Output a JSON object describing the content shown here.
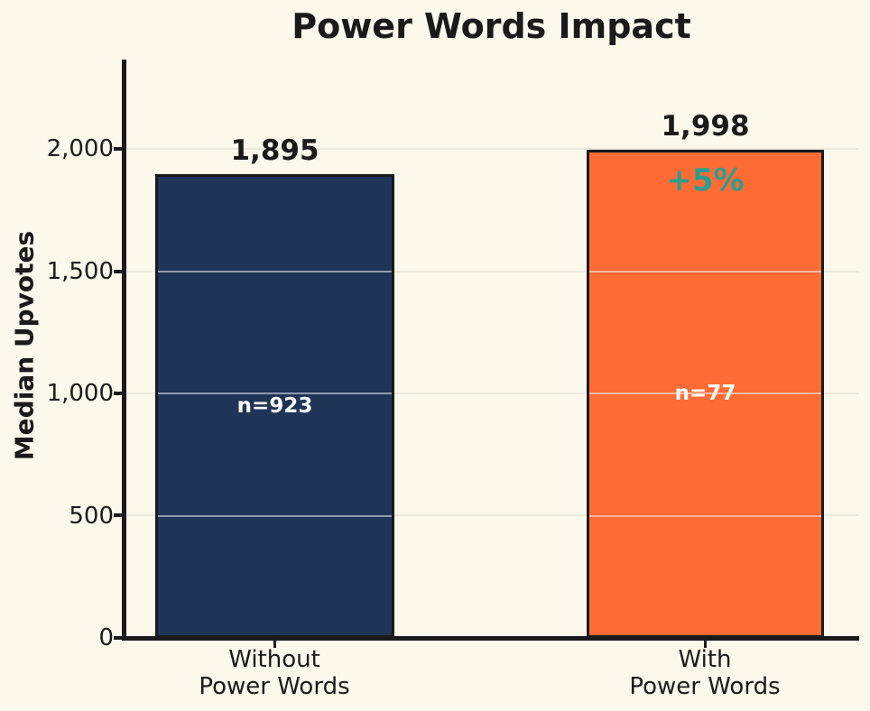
{
  "chart_data": {
    "type": "bar",
    "title": "Power Words Impact",
    "ylabel": "Median Upvotes",
    "xlabel": "",
    "categories": [
      "Without\nPower Words",
      "With\nPower Words"
    ],
    "values": [
      1895,
      1998
    ],
    "value_labels": [
      "1,895",
      "1,998"
    ],
    "sample_sizes": [
      923,
      77
    ],
    "sample_labels": [
      "n=923",
      "n=77"
    ],
    "delta_label": "+5%",
    "delta_color": "#2A9D8F",
    "bar_colors": [
      "#1F3557",
      "#FF6B35"
    ],
    "bar_edge_color": "#1A1A1A",
    "yticks": [
      0,
      500,
      1000,
      1500,
      2000
    ],
    "ytick_labels": [
      "0",
      "500",
      "1,000",
      "1,500",
      "2,000"
    ],
    "ylim": [
      0,
      2360
    ],
    "grid": true,
    "legend_position": "none",
    "background": "#FDF8EC",
    "text_color": "#1A1A1A"
  }
}
